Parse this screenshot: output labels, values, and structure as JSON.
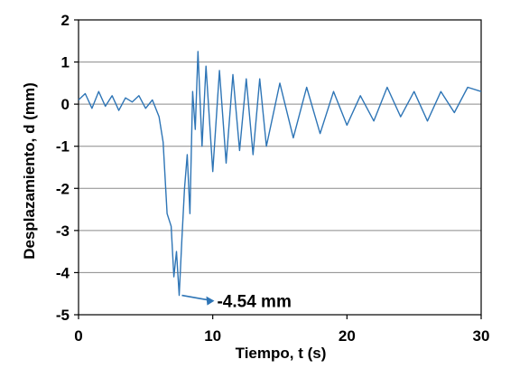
{
  "chart_data": {
    "type": "line",
    "title": "",
    "xlabel": "Tiempo, t (s)",
    "ylabel": "Desplazamiento, d (mm)",
    "xlim": [
      0,
      30
    ],
    "ylim": [
      -5,
      2
    ],
    "x_ticks": [
      "0",
      "10",
      "20",
      "30"
    ],
    "y_ticks": [
      "2",
      "1",
      "0",
      "-1",
      "-2",
      "-3",
      "-4",
      "-5"
    ],
    "grid": "horizontal",
    "legend": "none",
    "series": [
      {
        "color": "#2e75b6",
        "x": [
          0,
          0.5,
          1,
          1.5,
          2,
          2.5,
          3,
          3.5,
          4,
          4.5,
          5,
          5.5,
          6,
          6.3,
          6.6,
          6.9,
          7.1,
          7.3,
          7.5,
          7.7,
          7.9,
          8.1,
          8.3,
          8.5,
          8.7,
          8.9,
          9.2,
          9.5,
          10,
          10.5,
          11,
          11.5,
          12,
          12.5,
          13,
          13.5,
          14,
          15,
          16,
          17,
          18,
          19,
          20,
          21,
          22,
          23,
          24,
          25,
          26,
          27,
          28,
          29,
          30
        ],
        "y": [
          0.1,
          0.25,
          -0.1,
          0.3,
          -0.05,
          0.2,
          -0.15,
          0.15,
          0.05,
          0.2,
          -0.1,
          0.1,
          -0.3,
          -0.9,
          -2.6,
          -2.9,
          -4.1,
          -3.5,
          -4.54,
          -3.2,
          -2.0,
          -1.2,
          -2.6,
          0.3,
          -0.6,
          1.25,
          -1.0,
          0.9,
          -1.6,
          0.8,
          -1.4,
          0.7,
          -1.1,
          0.6,
          -1.2,
          0.6,
          -1.0,
          0.5,
          -0.8,
          0.4,
          -0.7,
          0.3,
          -0.5,
          0.2,
          -0.4,
          0.4,
          -0.3,
          0.3,
          -0.4,
          0.3,
          -0.2,
          0.4,
          0.3
        ]
      }
    ],
    "annotations": [
      {
        "text": "-4.54 mm",
        "x": 7.7,
        "y": -4.54
      }
    ]
  }
}
